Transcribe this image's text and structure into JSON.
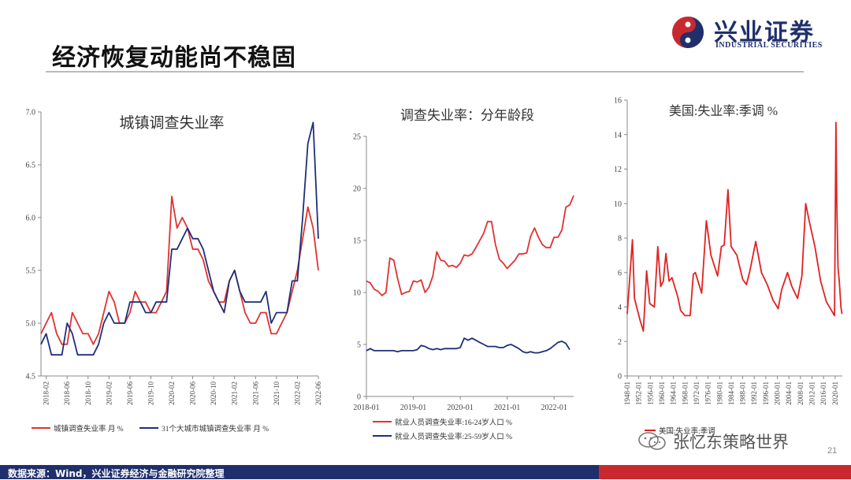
{
  "page": {
    "title": "经济恢复动能尚不稳固",
    "source": "数据来源：Wind，兴业证券经济与金融研究院整理",
    "page_number": "21",
    "watermark": "张忆东策略世界"
  },
  "logo": {
    "cn": "兴业证券",
    "en": "INDUSTRIAL SECURITIES"
  },
  "colors": {
    "red": "#e03232",
    "navy": "#1f2f7a",
    "us_red": "#e02222",
    "footer_navy": "#1f2f6b",
    "footer_red": "#c8282e"
  },
  "chart_data": [
    {
      "type": "line",
      "title": "城镇调查失业率",
      "ylim": [
        4.5,
        7.0
      ],
      "yticks": [
        "4.5",
        "5.0",
        "5.5",
        "6.0",
        "6.5",
        "7.0"
      ],
      "xticks": [
        "2018-02",
        "2018-06",
        "2018-10",
        "2019-02",
        "2019-06",
        "2019-10",
        "2020-02",
        "2020-06",
        "2020-10",
        "2021-02",
        "2021-06",
        "2021-10",
        "2022-02",
        "2022-06"
      ],
      "x_start": "2018-01",
      "legend": "bottom",
      "series": [
        {
          "name": "城镇调查失业率 月 %",
          "color": "#e03232",
          "values": [
            4.9,
            5.0,
            5.1,
            4.9,
            4.8,
            4.8,
            5.1,
            5.0,
            4.9,
            4.9,
            4.8,
            4.9,
            5.1,
            5.3,
            5.2,
            5.0,
            5.0,
            5.1,
            5.3,
            5.2,
            5.2,
            5.1,
            5.1,
            5.2,
            5.3,
            6.2,
            5.9,
            6.0,
            5.9,
            5.7,
            5.7,
            5.6,
            5.4,
            5.3,
            5.2,
            5.2,
            5.4,
            5.5,
            5.3,
            5.1,
            5.0,
            5.0,
            5.1,
            5.1,
            4.9,
            4.9,
            5.0,
            5.1,
            5.3,
            5.5,
            5.8,
            6.1,
            5.9,
            5.5
          ]
        },
        {
          "name": "31个大城市城镇调查失业率 月 %",
          "color": "#1f2f7a",
          "values": [
            4.8,
            4.9,
            4.7,
            4.7,
            4.7,
            5.0,
            4.9,
            4.7,
            4.7,
            4.7,
            4.7,
            4.8,
            5.0,
            5.1,
            5.0,
            5.0,
            5.0,
            5.2,
            5.2,
            5.2,
            5.1,
            5.1,
            5.2,
            5.2,
            5.2,
            5.7,
            5.7,
            5.8,
            5.9,
            5.8,
            5.8,
            5.7,
            5.5,
            5.3,
            5.2,
            5.1,
            5.4,
            5.5,
            5.3,
            5.2,
            5.2,
            5.2,
            5.2,
            5.3,
            5.0,
            5.1,
            5.1,
            5.1,
            5.4,
            5.4,
            6.0,
            6.7,
            6.9,
            5.8
          ]
        }
      ]
    },
    {
      "type": "line",
      "title": "调查失业率：分年龄段",
      "ylim": [
        0,
        25
      ],
      "yticks": [
        "0",
        "5",
        "10",
        "15",
        "20",
        "25"
      ],
      "xticks": [
        "2018-01",
        "2019-01",
        "2020-01",
        "2021-01",
        "2022-01"
      ],
      "x_start": "2018-01",
      "legend": "bottom",
      "series": [
        {
          "name": "就业人员调查失业率:16-24岁人口 %",
          "color": "#e03232",
          "values": [
            11.1,
            10.9,
            10.3,
            10.1,
            9.7,
            10.0,
            13.3,
            13.1,
            11.3,
            9.8,
            10.0,
            10.1,
            11.1,
            11.0,
            11.2,
            10.0,
            10.5,
            11.6,
            13.9,
            13.1,
            13.0,
            12.5,
            12.6,
            12.4,
            12.8,
            13.6,
            13.5,
            13.7,
            14.3,
            15.0,
            15.7,
            16.8,
            16.8,
            14.6,
            13.2,
            12.8,
            12.3,
            12.7,
            13.1,
            13.7,
            13.7,
            13.8,
            15.4,
            16.2,
            15.3,
            14.6,
            14.3,
            14.3,
            15.3,
            15.3,
            16.0,
            18.2,
            18.4,
            19.3
          ]
        },
        {
          "name": "就业人员调查失业率:25-59岁人口 %",
          "color": "#1f2f7a",
          "values": [
            4.4,
            4.6,
            4.4,
            4.4,
            4.4,
            4.4,
            4.4,
            4.4,
            4.3,
            4.4,
            4.4,
            4.4,
            4.4,
            4.5,
            4.9,
            4.8,
            4.6,
            4.5,
            4.6,
            4.5,
            4.6,
            4.6,
            4.6,
            4.6,
            4.7,
            5.6,
            5.4,
            5.6,
            5.4,
            5.2,
            5.0,
            4.8,
            4.8,
            4.8,
            4.7,
            4.7,
            4.9,
            5.0,
            4.8,
            4.6,
            4.3,
            4.2,
            4.3,
            4.2,
            4.2,
            4.3,
            4.4,
            4.6,
            4.9,
            5.2,
            5.3,
            5.1,
            4.5
          ]
        }
      ]
    },
    {
      "type": "line",
      "title": "美国:失业率:季调 %",
      "ylim": [
        0,
        16
      ],
      "yticks": [
        "0",
        "2",
        "4",
        "6",
        "8",
        "10",
        "12",
        "14",
        "16"
      ],
      "xticks": [
        "1948-01",
        "1952-01",
        "1956-01",
        "1960-01",
        "1964-01",
        "1968-01",
        "1972-01",
        "1976-01",
        "1980-01",
        "1984-01",
        "1988-01",
        "1992-01",
        "1996-01",
        "2000-01",
        "2004-01",
        "2008-01",
        "2012-01",
        "2016-01",
        "2020-01"
      ],
      "x_start": "1948-01",
      "legend": "bottom",
      "series": [
        {
          "name": "美国:失业率:季调",
          "color": "#e02222",
          "x": [
            1948.0,
            1949.8,
            1950.5,
            1952.5,
            1953.6,
            1954.7,
            1955.8,
            1957.4,
            1958.6,
            1959.6,
            1960.5,
            1961.4,
            1962.5,
            1963.5,
            1965.5,
            1966.5,
            1968.0,
            1969.8,
            1970.9,
            1971.6,
            1973.8,
            1975.4,
            1977.0,
            1979.3,
            1980.6,
            1981.6,
            1982.9,
            1984.0,
            1986.0,
            1988.0,
            1989.3,
            1990.5,
            1992.5,
            1994.5,
            1996.5,
            1998.5,
            2000.3,
            2001.5,
            2003.5,
            2005.0,
            2007.0,
            2008.5,
            2009.8,
            2011.0,
            2013.0,
            2015.0,
            2017.0,
            2019.8,
            2020.3,
            2020.6,
            2021.0,
            2021.5,
            2022.0,
            2022.4
          ],
          "values": [
            3.6,
            7.9,
            4.5,
            3.2,
            2.6,
            6.1,
            4.2,
            4.0,
            7.5,
            5.2,
            5.5,
            7.1,
            5.5,
            5.7,
            4.6,
            3.8,
            3.5,
            3.5,
            5.9,
            6.0,
            4.8,
            9.0,
            7.0,
            5.8,
            7.5,
            7.6,
            10.8,
            7.5,
            7.0,
            5.6,
            5.3,
            6.1,
            7.8,
            6.0,
            5.3,
            4.4,
            3.9,
            5.0,
            6.0,
            5.2,
            4.5,
            5.8,
            10.0,
            9.0,
            7.5,
            5.5,
            4.3,
            3.5,
            14.7,
            10.0,
            6.3,
            5.4,
            4.0,
            3.6
          ]
        }
      ]
    }
  ]
}
